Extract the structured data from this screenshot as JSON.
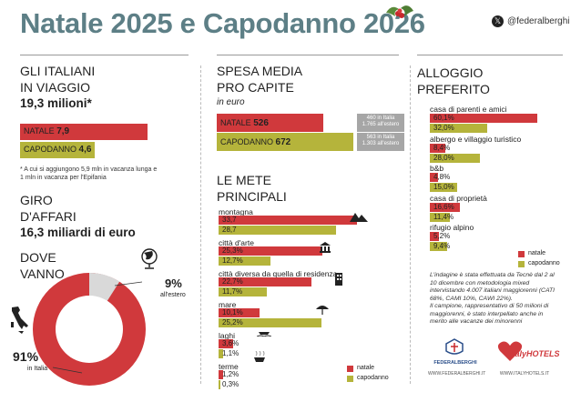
{
  "title": "Natale 2025 e Capodanno 2026",
  "social": {
    "handle": "@federalberghi"
  },
  "travel": {
    "heading_line1": "GLI ITALIANI",
    "heading_line2": "IN VIAGGIO",
    "total": "19,3 milioni*",
    "bars": [
      {
        "label": "NATALE",
        "value_text": "7,9",
        "value": 7.9
      },
      {
        "label": "CAPODANNO",
        "value_text": "4,6",
        "value": 4.6
      }
    ],
    "footnote_line1": "* A cui si aggiungono 5,9 mln in vacanza lunga  e",
    "footnote_line2": "1 mln in vacanza per l'Epifania"
  },
  "business": {
    "heading_line1": "GIRO",
    "heading_line2": "D'AFFARI",
    "total": "16,3 miliardi di euro"
  },
  "destination": {
    "heading_line1": "DOVE",
    "heading_line2": "VANNO",
    "italy_pct": "91%",
    "italy_label": "in Italia",
    "abroad_pct": "9%",
    "abroad_label": "all'estero"
  },
  "spending": {
    "heading_line1": "SPESA MEDIA",
    "heading_line2": "PRO CAPITE",
    "unit": "in euro",
    "bars": [
      {
        "label": "NATALE",
        "value_text": "526",
        "value": 526,
        "note_line1": "460 in Italia",
        "note_line2": "1.765 all'estero"
      },
      {
        "label": "CAPODANNO",
        "value_text": "672",
        "value": 672,
        "note_line1": "563 in Italia",
        "note_line2": "1.303 all'estero"
      }
    ]
  },
  "legend": {
    "natale": "natale",
    "capodanno": "capodanno"
  },
  "chart_data": [
    {
      "type": "bar",
      "title": "LE METE PRINCIPALI",
      "categories": [
        "montagna",
        "città d'arte",
        "città diversa da quella di residenza",
        "mare",
        "laghi",
        "terme"
      ],
      "series": [
        {
          "name": "natale",
          "values": [
            33.7,
            25.3,
            22.7,
            10.1,
            3.6,
            1.2
          ],
          "labels": [
            "33,7",
            "25,3%",
            "22,7%",
            "10,1%",
            "3,6%",
            "1,2%"
          ]
        },
        {
          "name": "capodanno",
          "values": [
            28.7,
            12.7,
            11.7,
            25.2,
            1.1,
            0.3
          ],
          "labels": [
            "28,7",
            "12,7%",
            "11,7%",
            "25,2%",
            "1,1%",
            "0,3%"
          ]
        }
      ],
      "xlim": [
        0,
        40
      ]
    },
    {
      "type": "bar",
      "title": "ALLOGGIO PREFERITO",
      "categories": [
        "casa di parenti e amici",
        "albergo e villaggio turistico",
        "b&b",
        "casa di proprietà",
        "rifugio alpino"
      ],
      "series": [
        {
          "name": "natale",
          "values": [
            60.1,
            8.4,
            4.8,
            16.6,
            5.2
          ],
          "labels": [
            "60,1%",
            "8,4%",
            "4,8%",
            "16,6%",
            "5,2%"
          ]
        },
        {
          "name": "capodanno",
          "values": [
            32.0,
            28.0,
            15.0,
            11.4,
            9.4
          ],
          "labels": [
            "32,0%",
            "28,0%",
            "15,0%",
            "11,4%",
            "9,4%"
          ]
        }
      ],
      "xlim": [
        0,
        65
      ]
    }
  ],
  "mete_heading": {
    "line1": "LE METE",
    "line2": "PRINCIPALI"
  },
  "alloggio_heading": {
    "line1": "ALLOGGIO",
    "line2": "PREFERITO"
  },
  "method_note": {
    "line1": "L'indagine è stata effettuata da Tecnè dal 2 al",
    "line2": "10 dicembre con metodologia mixed",
    "line3": "intervistando 4.007 italiani maggiorenni (CATI",
    "line4": "68%, CAMI 10%, CAWI 22%).",
    "line5": "Il campione, rappresentativo di 50 milioni di",
    "line6": "maggiorenni, è stato interpellato anche in",
    "line7": "merito alle vacanze dei minorenni"
  },
  "logos": {
    "federalberghi": "FEDERALBERGHI",
    "federalberghi_url": "WWW.FEDERALBERGHI.IT",
    "italyhotels": "ItalyHOTELS",
    "italyhotels_url": "WWW.ITALYHOTELS.IT"
  },
  "colors": {
    "natale": "#d0393c",
    "capodanno": "#b5b43b",
    "title": "#5d7f86",
    "abroad": "#d9d9d9"
  }
}
